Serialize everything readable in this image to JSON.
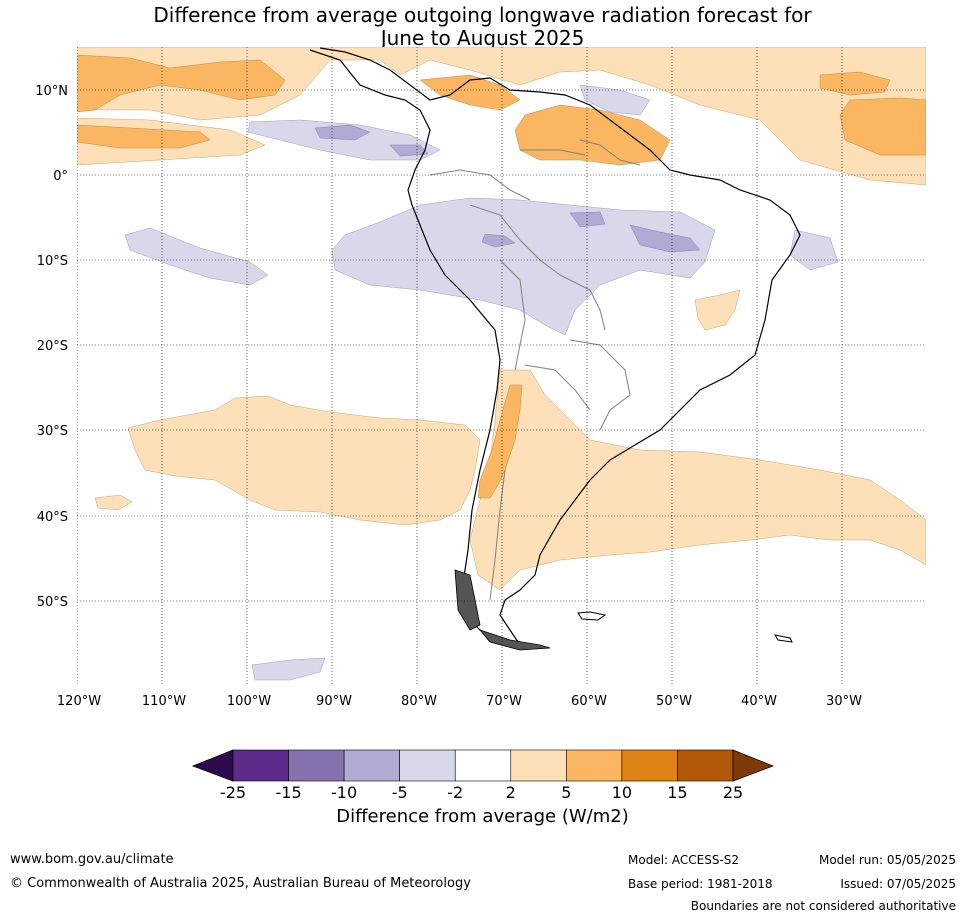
{
  "title": {
    "line1": "Difference from average outgoing longwave radiation forecast for",
    "line2": "June to August 2025"
  },
  "map": {
    "lat_labels": [
      "10°N",
      "0°",
      "10°S",
      "20°S",
      "30°S",
      "40°S",
      "50°S"
    ],
    "lon_labels": [
      "120°W",
      "110°W",
      "100°W",
      "90°W",
      "80°W",
      "70°W",
      "60°W",
      "50°W",
      "40°W",
      "30°W"
    ],
    "gridlines": true,
    "gridline_style": "dotted"
  },
  "colorbar": {
    "tick_labels": [
      "-25",
      "-15",
      "-10",
      "-5",
      "-2",
      "2",
      "5",
      "10",
      "15",
      "25"
    ],
    "colors": [
      "#2d0a4e",
      "#5b2a8a",
      "#8572ae",
      "#b1aad3",
      "#d8d8ea",
      "#ffffff",
      "#fde0b7",
      "#fbb661",
      "#e08316",
      "#b15908",
      "#7e3b08"
    ],
    "title": "Difference from average (W/m2)"
  },
  "footer": {
    "website": "www.bom.gov.au/climate",
    "copyright": "© Commonwealth of Australia 2025, Australian Bureau of Meteorology",
    "model": "Model: ACCESS-S2",
    "base_period": "Base period: 1981-2018",
    "model_run": "Model run: 05/05/2025",
    "issued": "Issued: 07/05/2025",
    "disclaimer": "Boundaries are not considered authoritative"
  }
}
